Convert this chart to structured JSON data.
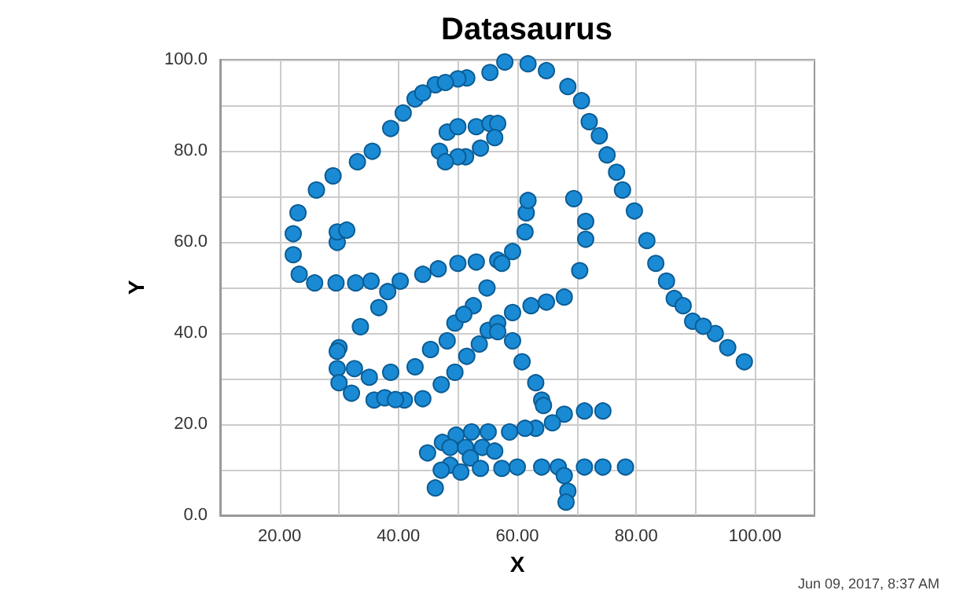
{
  "chart_data": {
    "type": "scatter",
    "title": "Datasaurus",
    "xlabel": "X",
    "ylabel": "Y",
    "annotations": [
      "Jun 09, 2017, 8:37 AM"
    ],
    "xlim": [
      10,
      110
    ],
    "xticks": [
      {
        "value": 20,
        "label": "20.00"
      },
      {
        "value": 30,
        "label": null
      },
      {
        "value": 40,
        "label": "40.00"
      },
      {
        "value": 50,
        "label": null
      },
      {
        "value": 60,
        "label": "60.00"
      },
      {
        "value": 70,
        "label": null
      },
      {
        "value": 80,
        "label": "80.00"
      },
      {
        "value": 90,
        "label": null
      },
      {
        "value": 100,
        "label": "100.00"
      }
    ],
    "ylim": [
      0,
      100
    ],
    "yticks": [
      {
        "value": 0,
        "label": "0.0"
      },
      {
        "value": 10,
        "label": null
      },
      {
        "value": 20,
        "label": "20.0"
      },
      {
        "value": 30,
        "label": null
      },
      {
        "value": 40,
        "label": "40.0"
      },
      {
        "value": 50,
        "label": null
      },
      {
        "value": 60,
        "label": "60.0"
      },
      {
        "value": 70,
        "label": null
      },
      {
        "value": 80,
        "label": "80.0"
      },
      {
        "value": 90,
        "label": null
      },
      {
        "value": 100,
        "label": "100.0"
      }
    ],
    "grid": true,
    "marker": "circle",
    "x": [
      55.4,
      51.5,
      46.2,
      42.8,
      40.8,
      38.7,
      35.6,
      33.1,
      29.0,
      26.2,
      23.1,
      22.3,
      22.3,
      23.3,
      25.9,
      29.5,
      32.8,
      35.4,
      40.3,
      44.1,
      46.7,
      50.0,
      53.1,
      56.7,
      59.2,
      61.3,
      61.5,
      61.8,
      57.4,
      54.9,
      52.6,
      48.2,
      49.5,
      51.0,
      45.4,
      42.8,
      38.7,
      35.1,
      32.6,
      30.0,
      33.6,
      36.7,
      38.2,
      29.7,
      29.7,
      30.0,
      32.1,
      35.9,
      41.0,
      44.1,
      47.2,
      49.5,
      51.5,
      53.6,
      55.1,
      56.7,
      59.2,
      62.3,
      64.9,
      67.9,
      70.5,
      71.5,
      71.5,
      69.5,
      46.9,
      48.2,
      50.0,
      53.1,
      55.4,
      56.7,
      56.2,
      53.8,
      51.3,
      50.0,
      47.9,
      29.7,
      29.7,
      31.3,
      57.9,
      61.8,
      64.9,
      68.5,
      70.8,
      72.1,
      73.8,
      75.1,
      76.7,
      77.7,
      79.7,
      81.8,
      83.3,
      85.1,
      86.4,
      87.9,
      89.5,
      93.3,
      95.4,
      98.2,
      56.7,
      59.2,
      60.8,
      63.1,
      64.1,
      64.4,
      74.4,
      71.3,
      67.9,
      65.9,
      63.1,
      61.3,
      58.7,
      55.1,
      52.3,
      49.7,
      47.4,
      44.9,
      48.7,
      51.3,
      54.1,
      56.2,
      52.1,
      48.7,
      47.2,
      46.2,
      50.5,
      53.8,
      57.4,
      60.0,
      64.1,
      66.9,
      71.3,
      74.4,
      78.2,
      67.9,
      68.5,
      68.2,
      37.7,
      39.5,
      91.3,
      50.0,
      47.9,
      44.1
    ],
    "series": [
      {
        "color": "#1a8ad4",
        "values": [
          97.2,
          96.0,
          94.5,
          91.4,
          88.3,
          84.9,
          79.9,
          77.6,
          74.5,
          71.4,
          66.4,
          61.8,
          57.2,
          52.9,
          51.0,
          51.0,
          51.0,
          51.4,
          51.4,
          52.9,
          54.1,
          55.3,
          55.6,
          56.0,
          57.9,
          62.2,
          66.4,
          69.1,
          55.3,
          49.9,
          46.0,
          38.3,
          42.2,
          44.1,
          36.4,
          32.6,
          31.4,
          30.3,
          32.2,
          36.8,
          41.4,
          45.6,
          49.1,
          36.0,
          32.2,
          29.1,
          26.8,
          25.3,
          25.3,
          25.6,
          28.7,
          31.4,
          34.9,
          37.6,
          40.6,
          42.2,
          44.5,
          46.0,
          46.8,
          47.9,
          53.7,
          60.6,
          64.5,
          69.5,
          79.9,
          84.1,
          85.3,
          85.3,
          86.0,
          86.0,
          82.9,
          80.6,
          78.7,
          78.7,
          77.6,
          59.9,
          62.2,
          62.6,
          99.5,
          99.1,
          97.6,
          94.1,
          91.0,
          86.4,
          83.3,
          79.1,
          75.3,
          71.4,
          66.8,
          60.3,
          55.3,
          51.4,
          47.6,
          46.0,
          42.6,
          39.9,
          36.8,
          33.7,
          40.3,
          38.3,
          33.7,
          29.1,
          25.3,
          24.1,
          22.9,
          22.9,
          22.2,
          20.3,
          19.1,
          19.1,
          18.3,
          18.3,
          18.3,
          17.6,
          16.0,
          13.7,
          14.9,
          14.9,
          14.9,
          14.1,
          12.6,
          11.0,
          9.9,
          6.0,
          9.5,
          10.3,
          10.3,
          10.6,
          10.6,
          10.6,
          10.6,
          10.6,
          10.6,
          8.7,
          5.3,
          2.9,
          25.8,
          25.4,
          41.5,
          95.8,
          95.0,
          92.7
        ]
      }
    ]
  }
}
